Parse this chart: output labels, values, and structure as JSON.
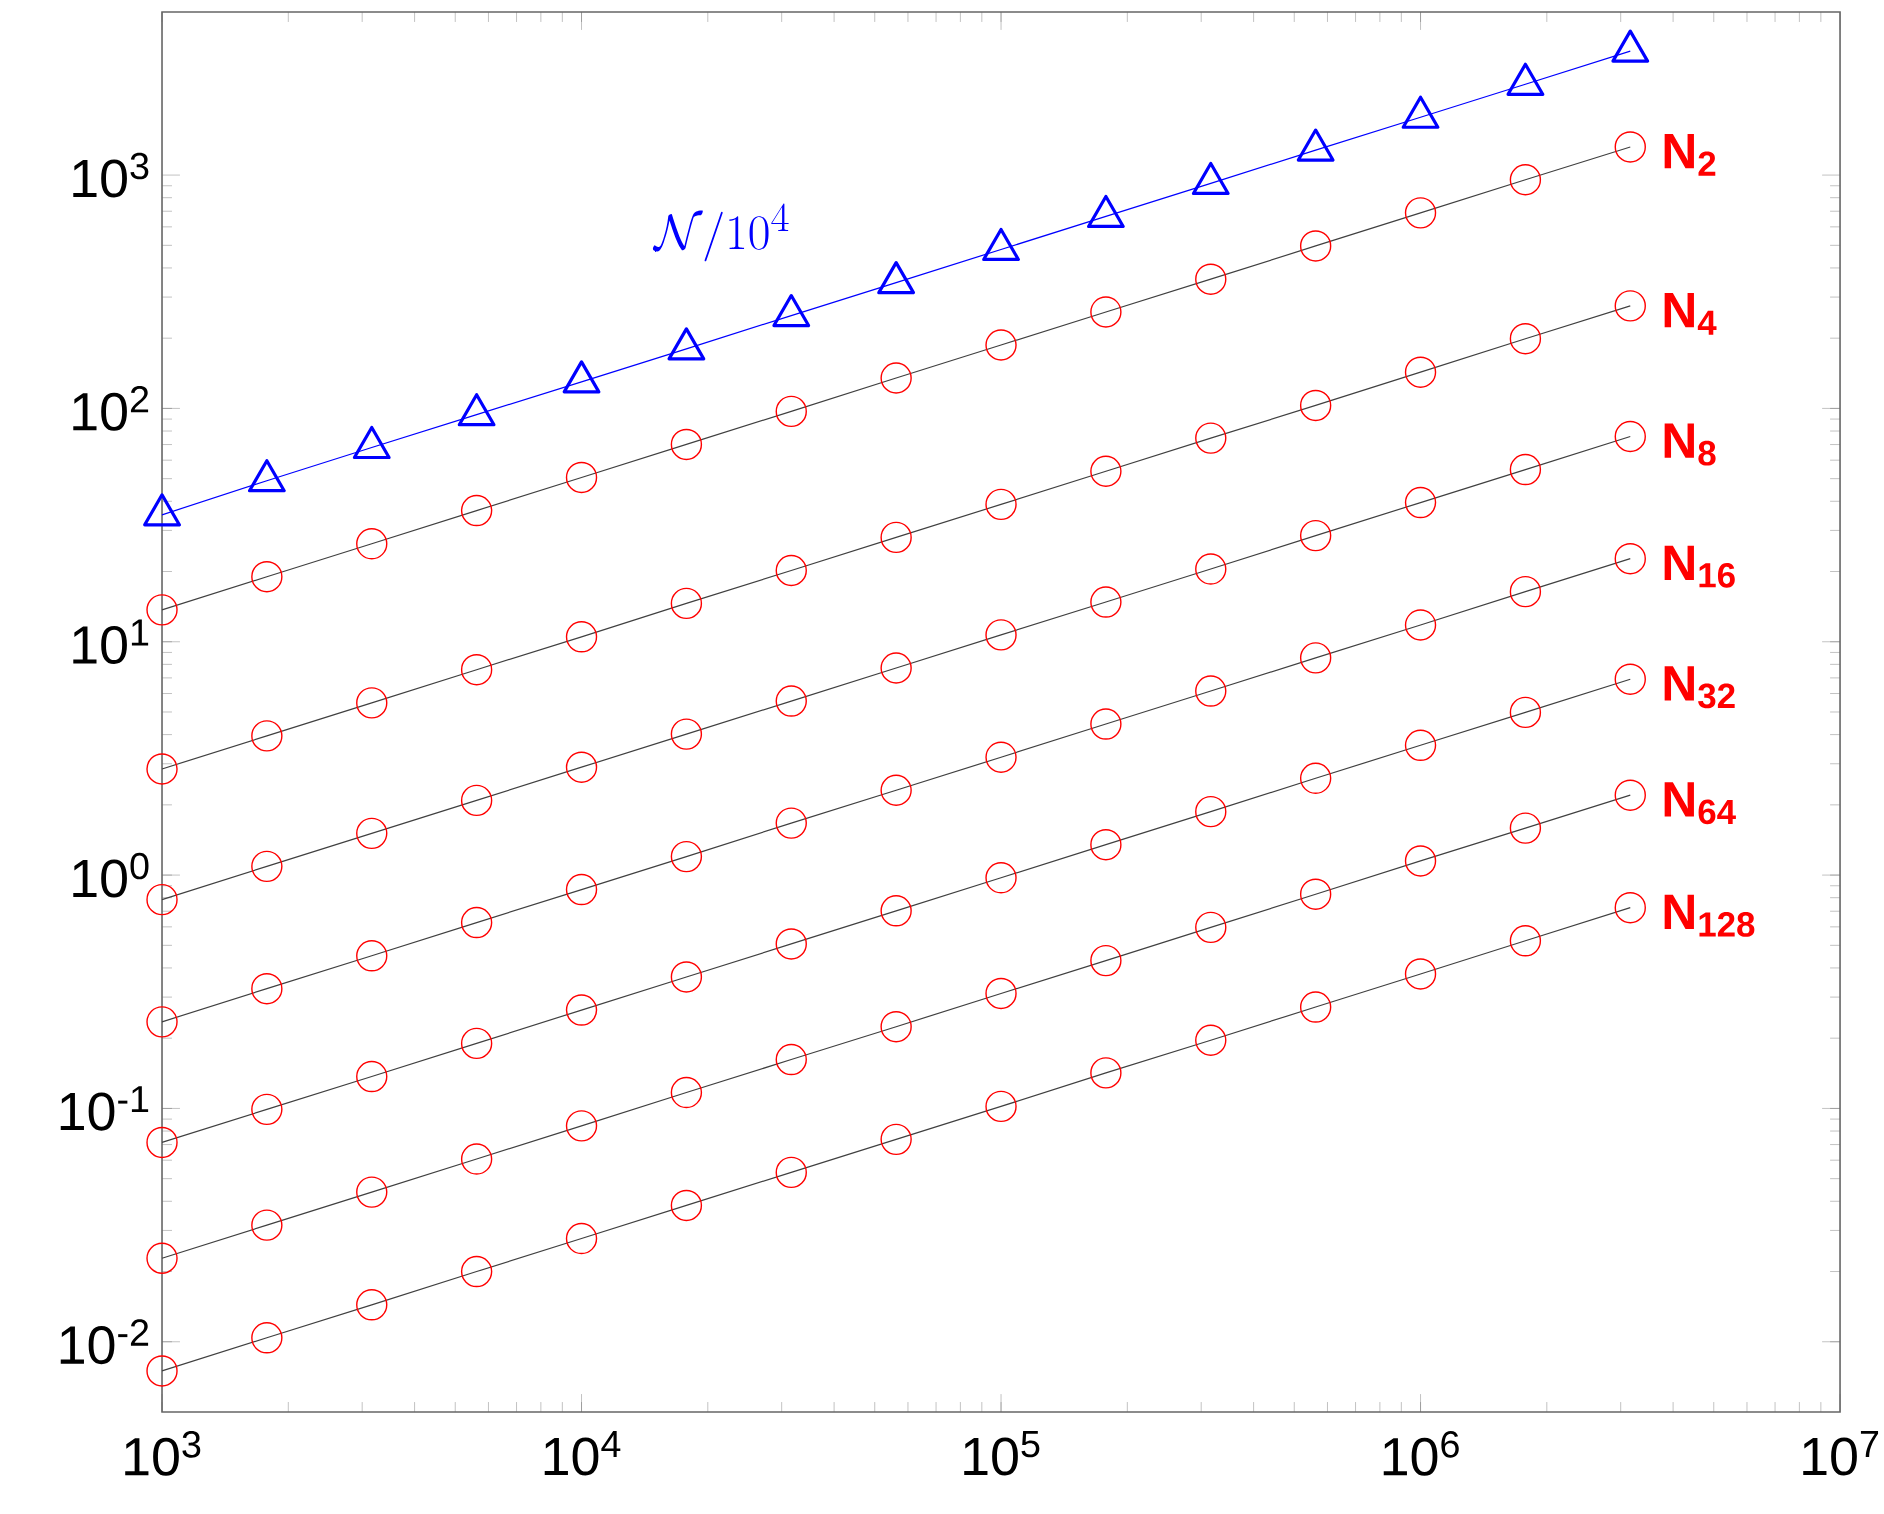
{
  "chart_data": {
    "type": "line",
    "x": [
      1000,
      1778,
      3162,
      5623,
      10000,
      17783,
      31623,
      56234,
      100000,
      177828,
      316228,
      562341,
      1000000,
      1778279,
      3162278
    ],
    "xlim": [
      1000,
      10000000
    ],
    "ylim": [
      0.005,
      5000
    ],
    "log": "xy",
    "grid": false,
    "line_style": "solid",
    "xticks": [
      {
        "value": 1000,
        "label": "10$^{3}$"
      },
      {
        "value": 10000,
        "label": "10$^{4}$"
      },
      {
        "value": 100000,
        "label": "10$^{5}$"
      },
      {
        "value": 1000000,
        "label": "10$^{6}$"
      },
      {
        "value": 10000000,
        "label": "10$^{7}$"
      }
    ],
    "yticks": [
      {
        "value": 0.01,
        "label": "10$^{-2}$"
      },
      {
        "value": 0.1,
        "label": "10$^{-1}$"
      },
      {
        "value": 1,
        "label": "10$^{0}$"
      },
      {
        "value": 10,
        "label": "10$^{1}$"
      },
      {
        "value": 100,
        "label": "10$^{2}$"
      },
      {
        "value": 1000,
        "label": "10$^{3}$"
      }
    ],
    "series": [
      {
        "name": "\\mathcal{N}/10^{4}",
        "color": "#0000ff",
        "marker": "triangle",
        "values": [
          35,
          49,
          68,
          94,
          130,
          180,
          250,
          346,
          480,
          665,
          921,
          1280,
          1770,
          2450,
          3400
        ]
      },
      {
        "name": "N$_{2}$",
        "color": "#ff0000",
        "marker": "circle",
        "values": [
          13.7,
          19,
          26.3,
          36.5,
          50.6,
          70.1,
          97.1,
          135,
          187,
          259,
          358,
          497,
          689,
          955,
          1320
        ]
      },
      {
        "name": "N$_{4}$",
        "color": "#ff0000",
        "marker": "circle",
        "values": [
          2.85,
          3.95,
          5.47,
          7.59,
          10.5,
          14.6,
          20.2,
          28.0,
          38.8,
          53.8,
          74.6,
          103,
          143,
          199,
          275
        ]
      },
      {
        "name": "N$_{8}$",
        "color": "#ff0000",
        "marker": "circle",
        "values": [
          0.785,
          1.09,
          1.51,
          2.09,
          2.9,
          4.02,
          5.57,
          7.72,
          10.7,
          14.8,
          20.5,
          28.5,
          39.5,
          54.7,
          75.8
        ]
      },
      {
        "name": "N$_{16}$",
        "color": "#ff0000",
        "marker": "circle",
        "values": [
          0.235,
          0.326,
          0.451,
          0.626,
          0.867,
          1.2,
          1.67,
          2.31,
          3.2,
          4.44,
          6.15,
          8.53,
          11.8,
          16.4,
          22.7
        ]
      },
      {
        "name": "N$_{32}$",
        "color": "#ff0000",
        "marker": "circle",
        "values": [
          0.0715,
          0.0991,
          0.137,
          0.19,
          0.264,
          0.366,
          0.507,
          0.703,
          0.974,
          1.35,
          1.87,
          2.6,
          3.6,
          4.98,
          6.91
        ]
      },
      {
        "name": "N$_{64}$",
        "color": "#ff0000",
        "marker": "circle",
        "values": [
          0.0228,
          0.0316,
          0.0438,
          0.0607,
          0.0842,
          0.117,
          0.162,
          0.224,
          0.311,
          0.43,
          0.597,
          0.828,
          1.15,
          1.59,
          2.2
        ]
      },
      {
        "name": "N$_{128}$",
        "color": "#ff0000",
        "marker": "circle",
        "values": [
          0.0075,
          0.0104,
          0.0144,
          0.02,
          0.0277,
          0.0384,
          0.0532,
          0.0737,
          0.102,
          0.142,
          0.196,
          0.272,
          0.377,
          0.523,
          0.725
        ]
      }
    ]
  }
}
